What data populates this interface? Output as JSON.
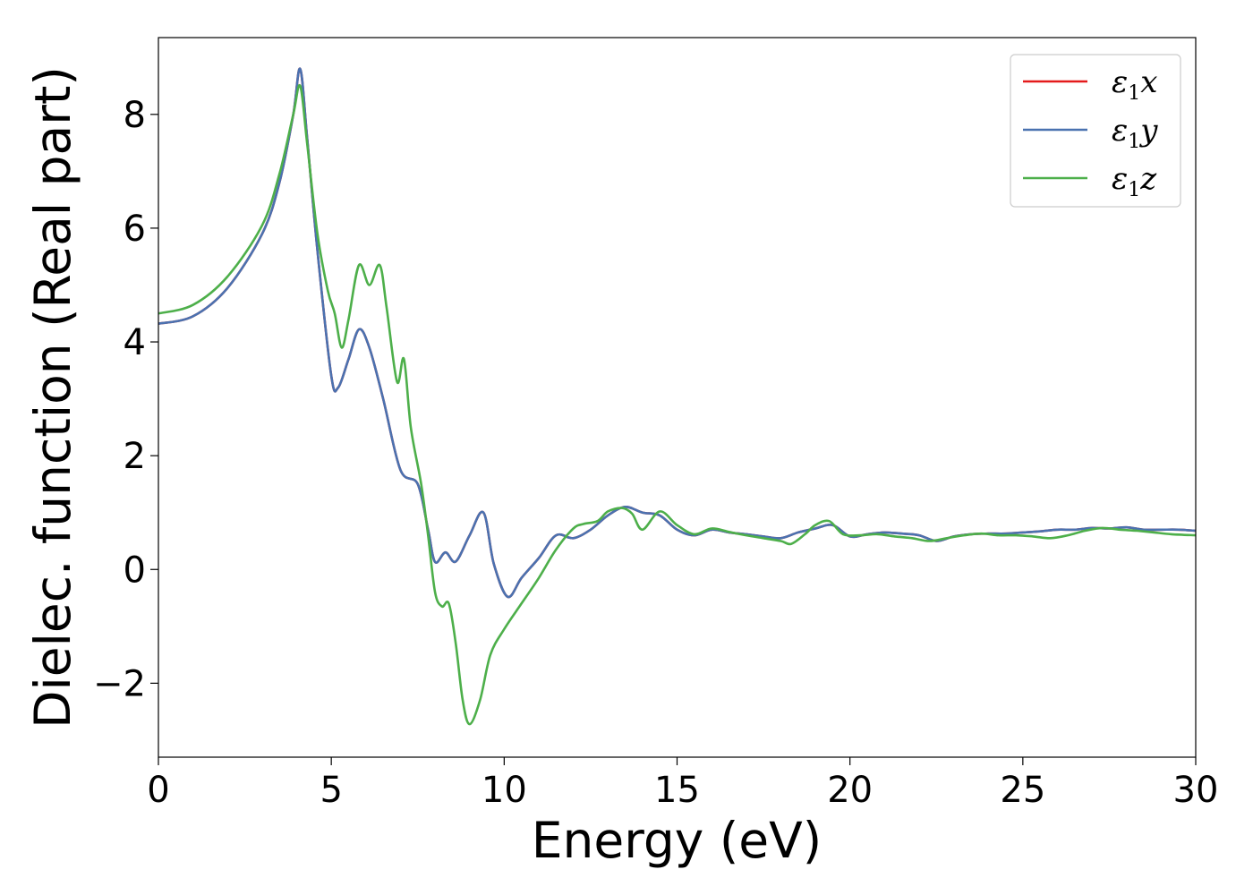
{
  "chart_data": {
    "type": "line",
    "title": "",
    "xlabel": "Energy (eV)",
    "ylabel": "Dielec. function (Real part)",
    "xlim": [
      0,
      30
    ],
    "ylim": [
      -3.3,
      9.35
    ],
    "xticks": [
      0,
      5,
      10,
      15,
      20,
      25,
      30
    ],
    "xtick_labels": [
      "0",
      "5",
      "10",
      "15",
      "20",
      "25",
      "30"
    ],
    "yticks": [
      -2,
      0,
      2,
      4,
      6,
      8
    ],
    "ytick_labels": [
      "−2",
      "0",
      "2",
      "4",
      "6",
      "8"
    ],
    "grid": false,
    "legend_position": "top-right",
    "series": [
      {
        "name": "ε₁x",
        "legend_main": "ε",
        "legend_sub": "1",
        "legend_tail": "x",
        "color": "#e41a1c",
        "x": [
          0,
          1,
          2,
          3,
          3.5,
          3.9,
          4.1,
          4.3,
          4.6,
          5.0,
          5.2,
          5.5,
          5.8,
          6.1,
          6.5,
          7.0,
          7.5,
          7.8,
          8.0,
          8.3,
          8.6,
          9.0,
          9.4,
          9.7,
          10.1,
          10.5,
          11.0,
          11.5,
          12.0,
          12.5,
          13.0,
          13.5,
          14.0,
          14.5,
          15.0,
          15.5,
          16.0,
          16.5,
          17.0,
          17.5,
          18.0,
          18.5,
          19.0,
          19.5,
          20.0,
          20.5,
          21.0,
          21.5,
          22.0,
          22.5,
          23.0,
          23.5,
          24.0,
          24.5,
          25.0,
          25.5,
          26.0,
          26.5,
          27.0,
          27.5,
          28.0,
          28.5,
          29.0,
          29.5,
          30.0
        ],
        "y": [
          4.32,
          4.45,
          4.95,
          5.9,
          6.8,
          8.0,
          8.8,
          7.6,
          5.6,
          3.4,
          3.2,
          3.7,
          4.22,
          3.9,
          3.0,
          1.75,
          1.5,
          0.7,
          0.13,
          0.3,
          0.14,
          0.6,
          1.0,
          0.1,
          -0.48,
          -0.15,
          0.2,
          0.6,
          0.55,
          0.7,
          0.95,
          1.1,
          1.0,
          0.95,
          0.7,
          0.6,
          0.7,
          0.65,
          0.62,
          0.58,
          0.55,
          0.65,
          0.72,
          0.78,
          0.58,
          0.62,
          0.65,
          0.63,
          0.6,
          0.5,
          0.58,
          0.62,
          0.63,
          0.63,
          0.65,
          0.67,
          0.7,
          0.7,
          0.73,
          0.72,
          0.74,
          0.7,
          0.7,
          0.7,
          0.68
        ]
      },
      {
        "name": "ε₁y",
        "legend_main": "ε",
        "legend_sub": "1",
        "legend_tail": "y",
        "color": "#4a72b0",
        "x": [
          0,
          1,
          2,
          3,
          3.5,
          3.9,
          4.1,
          4.3,
          4.6,
          5.0,
          5.2,
          5.5,
          5.8,
          6.1,
          6.5,
          7.0,
          7.5,
          7.8,
          8.0,
          8.3,
          8.6,
          9.0,
          9.4,
          9.7,
          10.1,
          10.5,
          11.0,
          11.5,
          12.0,
          12.5,
          13.0,
          13.5,
          14.0,
          14.5,
          15.0,
          15.5,
          16.0,
          16.5,
          17.0,
          17.5,
          18.0,
          18.5,
          19.0,
          19.5,
          20.0,
          20.5,
          21.0,
          21.5,
          22.0,
          22.5,
          23.0,
          23.5,
          24.0,
          24.5,
          25.0,
          25.5,
          26.0,
          26.5,
          27.0,
          27.5,
          28.0,
          28.5,
          29.0,
          29.5,
          30.0
        ],
        "y": [
          4.32,
          4.45,
          4.95,
          5.9,
          6.8,
          8.0,
          8.8,
          7.6,
          5.6,
          3.4,
          3.2,
          3.7,
          4.22,
          3.9,
          3.0,
          1.75,
          1.5,
          0.7,
          0.13,
          0.3,
          0.14,
          0.6,
          1.0,
          0.1,
          -0.48,
          -0.15,
          0.2,
          0.6,
          0.55,
          0.7,
          0.95,
          1.1,
          1.0,
          0.95,
          0.7,
          0.6,
          0.7,
          0.65,
          0.62,
          0.58,
          0.55,
          0.65,
          0.72,
          0.78,
          0.58,
          0.62,
          0.65,
          0.63,
          0.6,
          0.5,
          0.58,
          0.62,
          0.63,
          0.63,
          0.65,
          0.67,
          0.7,
          0.7,
          0.73,
          0.72,
          0.74,
          0.7,
          0.7,
          0.7,
          0.68
        ]
      },
      {
        "name": "ε₁z",
        "legend_main": "ε",
        "legend_sub": "1",
        "legend_tail": "z",
        "color": "#4daf4a",
        "x": [
          0,
          1,
          2,
          3,
          3.5,
          3.9,
          4.1,
          4.3,
          4.6,
          4.9,
          5.1,
          5.3,
          5.5,
          5.8,
          6.1,
          6.4,
          6.6,
          6.9,
          7.1,
          7.3,
          7.6,
          7.8,
          8.0,
          8.2,
          8.4,
          8.6,
          8.8,
          9.0,
          9.3,
          9.6,
          10.0,
          10.5,
          11.0,
          11.5,
          12.0,
          12.3,
          12.7,
          13.0,
          13.4,
          13.7,
          14.0,
          14.5,
          15.0,
          15.5,
          16.0,
          16.5,
          17.0,
          17.5,
          18.0,
          18.3,
          18.7,
          19.0,
          19.4,
          19.8,
          20.3,
          20.8,
          21.3,
          21.8,
          22.3,
          22.8,
          23.3,
          23.8,
          24.3,
          24.8,
          25.3,
          25.8,
          26.3,
          26.8,
          27.3,
          27.8,
          28.3,
          28.8,
          29.3,
          30.0
        ],
        "y": [
          4.5,
          4.65,
          5.15,
          6.05,
          6.95,
          8.0,
          8.5,
          7.5,
          5.9,
          4.9,
          4.5,
          3.9,
          4.4,
          5.35,
          5.0,
          5.35,
          4.6,
          3.3,
          3.7,
          2.5,
          1.5,
          0.6,
          -0.4,
          -0.65,
          -0.6,
          -1.3,
          -2.3,
          -2.72,
          -2.3,
          -1.5,
          -1.05,
          -0.6,
          -0.15,
          0.35,
          0.72,
          0.8,
          0.85,
          1.02,
          1.08,
          0.98,
          0.7,
          1.02,
          0.78,
          0.62,
          0.72,
          0.66,
          0.6,
          0.55,
          0.5,
          0.45,
          0.62,
          0.78,
          0.85,
          0.62,
          0.6,
          0.62,
          0.58,
          0.55,
          0.5,
          0.55,
          0.6,
          0.63,
          0.6,
          0.6,
          0.58,
          0.55,
          0.6,
          0.68,
          0.73,
          0.7,
          0.68,
          0.65,
          0.62,
          0.6
        ]
      }
    ]
  }
}
